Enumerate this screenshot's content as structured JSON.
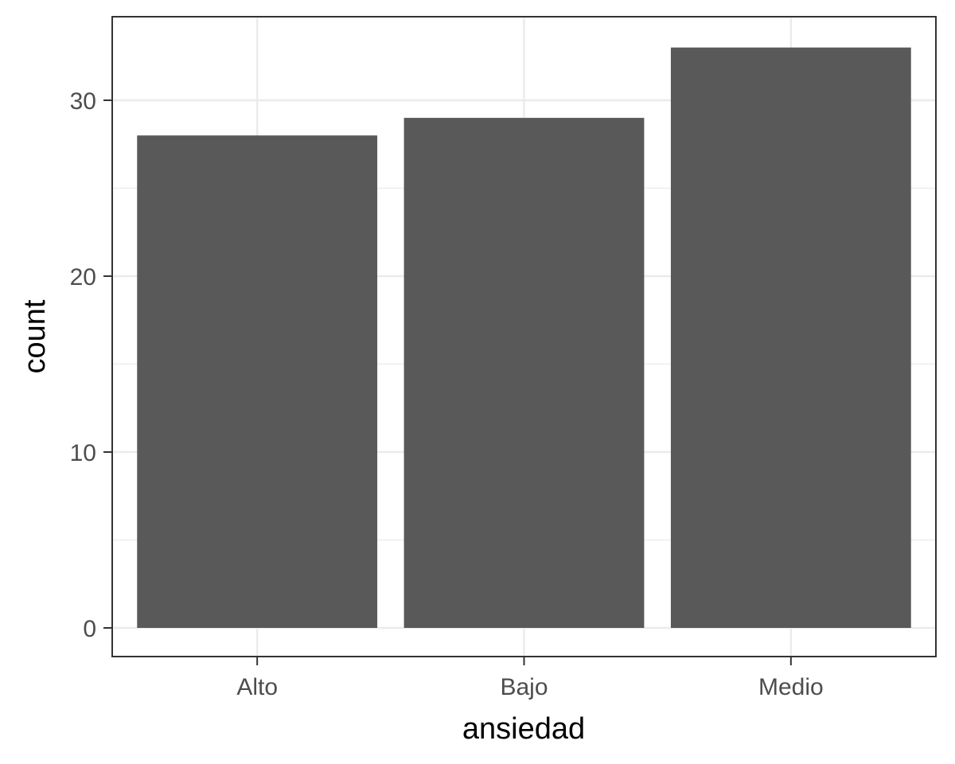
{
  "chart_data": {
    "type": "bar",
    "categories": [
      "Alto",
      "Bajo",
      "Medio"
    ],
    "values": [
      28,
      29,
      33
    ],
    "xlabel": "ansiedad",
    "ylabel": "count",
    "ylim": [
      0,
      34.65
    ],
    "y_ticks": [
      0,
      10,
      20,
      30
    ],
    "y_minor_ticks": [
      5,
      15,
      25
    ],
    "grid": true,
    "bar_color": "#595959",
    "grid_color": "#ebebeb",
    "panel_border_color": "#333333",
    "tick_label_color": "#4d4d4d",
    "background": "#ffffff"
  }
}
